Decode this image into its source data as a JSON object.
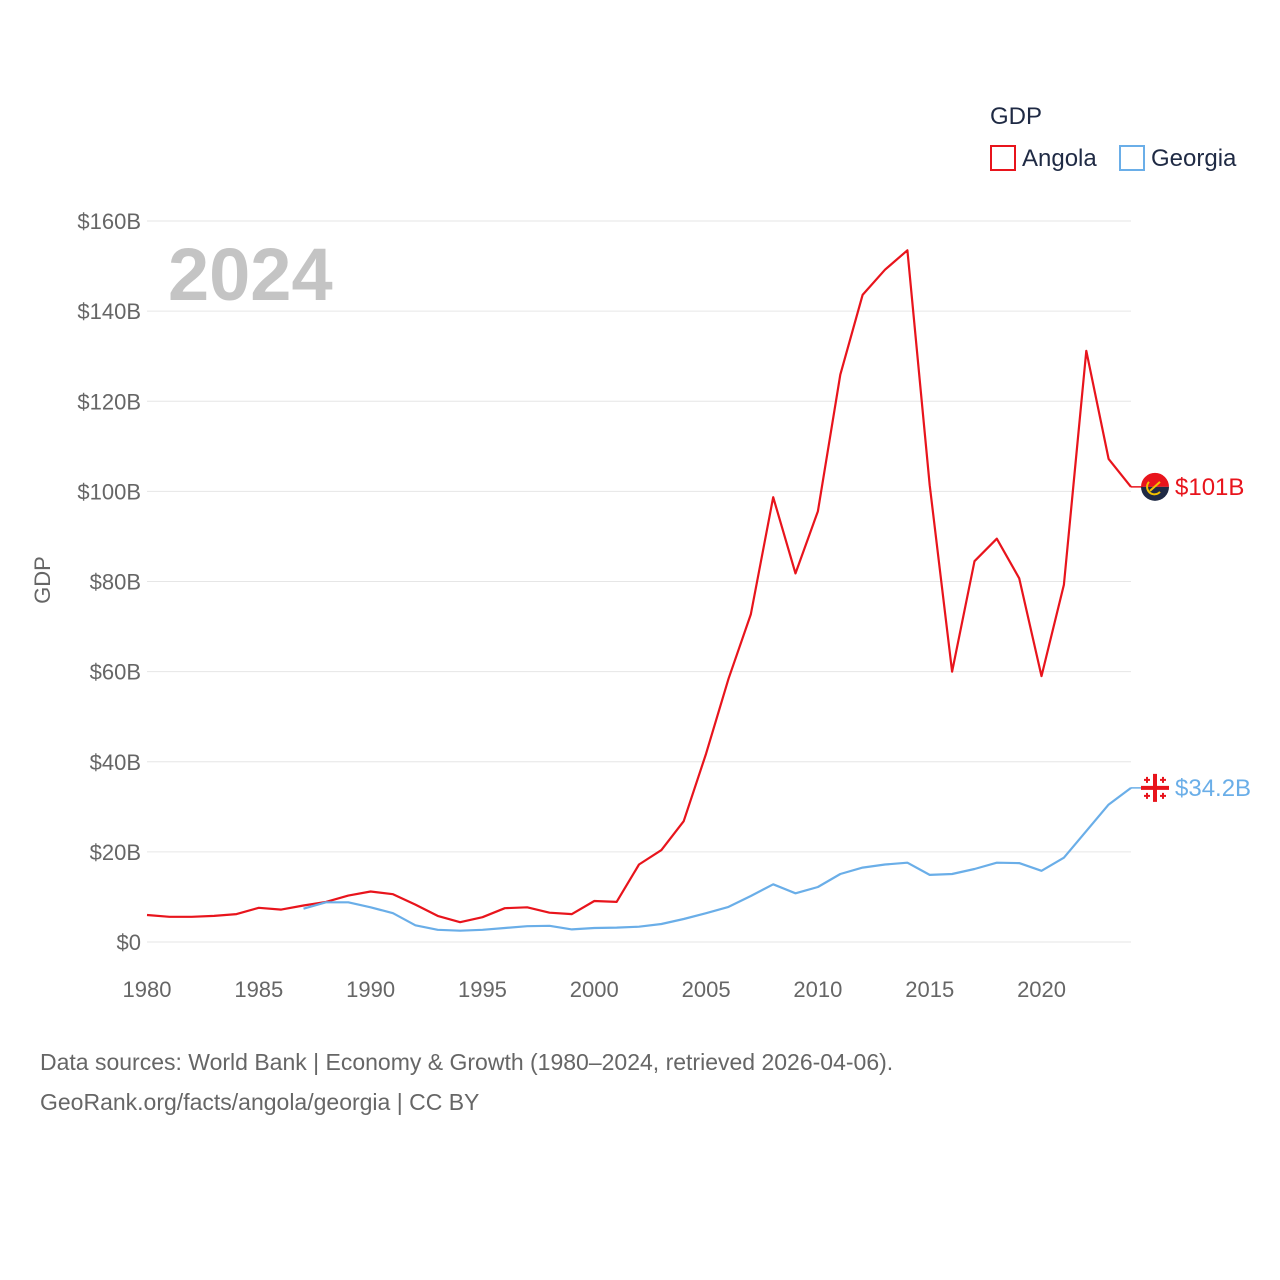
{
  "chart_data": {
    "type": "line",
    "title": "",
    "xlabel": "",
    "ylabel": "GDP",
    "year_label": "2024",
    "xlim": [
      1980,
      2024
    ],
    "ylim": [
      0,
      160
    ],
    "x_ticks": [
      1980,
      1985,
      1990,
      1995,
      2000,
      2005,
      2010,
      2015,
      2020
    ],
    "y_ticks": [
      {
        "value": 0,
        "label": "$0"
      },
      {
        "value": 20,
        "label": "$20B"
      },
      {
        "value": 40,
        "label": "$40B"
      },
      {
        "value": 60,
        "label": "$60B"
      },
      {
        "value": 80,
        "label": "$80B"
      },
      {
        "value": 100,
        "label": "$100B"
      },
      {
        "value": 120,
        "label": "$120B"
      },
      {
        "value": 140,
        "label": "$140B"
      },
      {
        "value": 160,
        "label": "$160B"
      }
    ],
    "grid": true,
    "legend": {
      "title": "GDP",
      "position": "top-right"
    },
    "units": "billions USD",
    "series": [
      {
        "name": "Angola",
        "color": "#e8141c",
        "end_label": "$101B",
        "flag_icon": "angola-flag-icon",
        "x": [
          1980,
          1981,
          1982,
          1983,
          1984,
          1985,
          1986,
          1987,
          1988,
          1989,
          1990,
          1991,
          1992,
          1993,
          1994,
          1995,
          1996,
          1997,
          1998,
          1999,
          2000,
          2001,
          2002,
          2003,
          2004,
          2005,
          2006,
          2007,
          2008,
          2009,
          2010,
          2011,
          2012,
          2013,
          2014,
          2015,
          2016,
          2017,
          2018,
          2019,
          2020,
          2021,
          2022,
          2023,
          2024
        ],
        "values": [
          6.0,
          5.6,
          5.6,
          5.8,
          6.2,
          7.6,
          7.2,
          8.1,
          8.9,
          10.3,
          11.2,
          10.6,
          8.3,
          5.8,
          4.4,
          5.5,
          7.5,
          7.7,
          6.5,
          6.2,
          9.1,
          8.9,
          17.2,
          20.4,
          26.8,
          41.8,
          58.4,
          72.7,
          98.7,
          81.8,
          95.6,
          125.9,
          143.6,
          149.2,
          153.5,
          101.4,
          60.0,
          84.5,
          89.5,
          80.7,
          59.0,
          79.3,
          131.2,
          107.2,
          101.0
        ]
      },
      {
        "name": "Georgia",
        "color": "#6aaee8",
        "end_label": "$34.2B",
        "flag_icon": "georgia-flag-icon",
        "x": [
          1987,
          1988,
          1989,
          1990,
          1991,
          1992,
          1993,
          1994,
          1995,
          1996,
          1997,
          1998,
          1999,
          2000,
          2001,
          2002,
          2003,
          2004,
          2005,
          2006,
          2007,
          2008,
          2009,
          2010,
          2011,
          2012,
          2013,
          2014,
          2015,
          2016,
          2017,
          2018,
          2019,
          2020,
          2021,
          2022,
          2023,
          2024
        ],
        "values": [
          7.4,
          8.8,
          8.8,
          7.7,
          6.4,
          3.7,
          2.7,
          2.5,
          2.7,
          3.1,
          3.5,
          3.6,
          2.8,
          3.1,
          3.2,
          3.4,
          4.0,
          5.1,
          6.4,
          7.8,
          10.2,
          12.8,
          10.8,
          12.2,
          15.1,
          16.5,
          17.2,
          17.6,
          14.9,
          15.1,
          16.2,
          17.6,
          17.5,
          15.8,
          18.7,
          24.6,
          30.5,
          34.2
        ]
      }
    ]
  },
  "source": {
    "line1": "Data sources: World Bank | Economy & Growth (1980–2024, retrieved 2026-04-06).",
    "line2": "GeoRank.org/facts/angola/georgia | CC BY"
  },
  "colors": {
    "grid": "#e6e6e6",
    "tick": "#666666",
    "watermark": "#c4c4c4",
    "angola_flag_top": "#e8141c",
    "angola_flag_bottom": "#1f2a44",
    "angola_emblem": "#f2c200",
    "georgia_cross": "#e8141c"
  }
}
